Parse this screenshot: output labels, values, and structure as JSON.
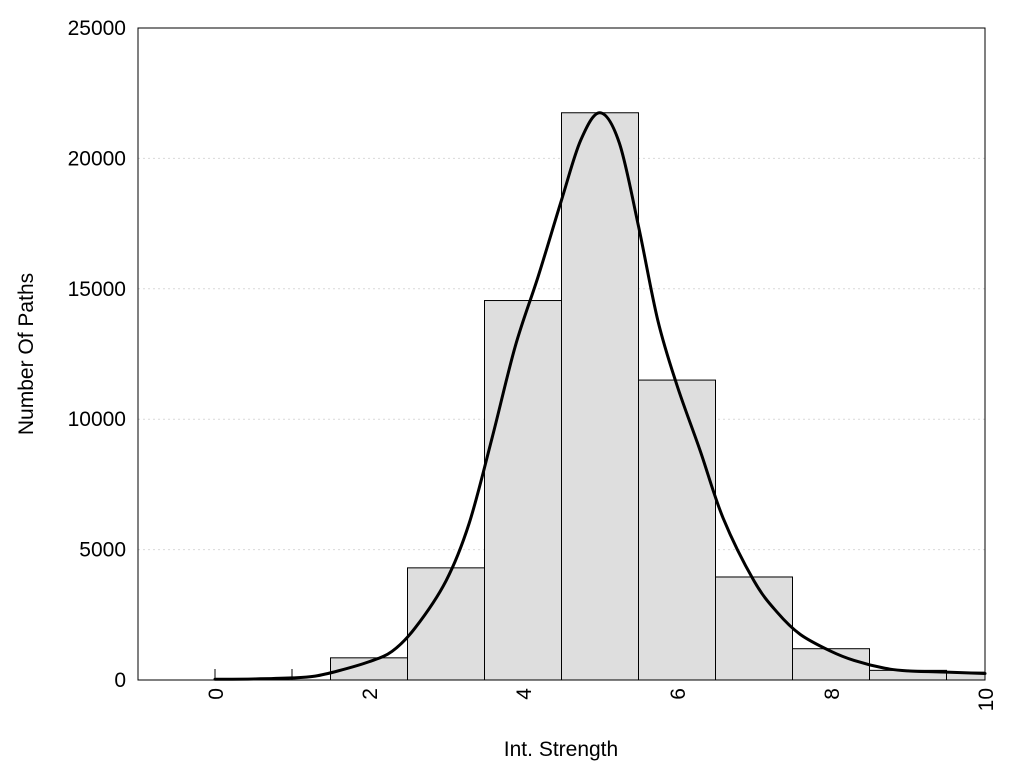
{
  "chart_data": {
    "type": "bar",
    "title": "",
    "xlabel": "Int. Strength",
    "ylabel": "Number Of Paths",
    "xlim": [
      -1,
      10
    ],
    "ylim": [
      0,
      25000
    ],
    "grid": true,
    "x_ticks": [
      0,
      2,
      4,
      6,
      8,
      10
    ],
    "x_tick_labels": [
      "0",
      "2",
      "4",
      "6",
      "8",
      "10"
    ],
    "y_ticks": [
      0,
      5000,
      10000,
      15000,
      20000,
      25000
    ],
    "y_tick_labels": [
      "0",
      "5000",
      "10000",
      "15000",
      "20000",
      "25000"
    ],
    "bin_width": 1,
    "bars": [
      {
        "x": 0,
        "value": 0
      },
      {
        "x": 1,
        "value": 0
      },
      {
        "x": 2,
        "value": 850
      },
      {
        "x": 3,
        "value": 4300
      },
      {
        "x": 4,
        "value": 14550
      },
      {
        "x": 5,
        "value": 21750
      },
      {
        "x": 6,
        "value": 11500
      },
      {
        "x": 7,
        "value": 3950
      },
      {
        "x": 8,
        "value": 1200
      },
      {
        "x": 9,
        "value": 370
      },
      {
        "x": 10,
        "value": 300
      }
    ],
    "curve": [
      [
        0,
        30
      ],
      [
        0.5,
        40
      ],
      [
        1,
        80
      ],
      [
        1.3,
        150
      ],
      [
        1.6,
        350
      ],
      [
        2,
        700
      ],
      [
        2.3,
        1100
      ],
      [
        2.6,
        2000
      ],
      [
        3,
        3800
      ],
      [
        3.3,
        6000
      ],
      [
        3.6,
        9300
      ],
      [
        3.9,
        12800
      ],
      [
        4.2,
        15500
      ],
      [
        4.5,
        18400
      ],
      [
        4.75,
        20700
      ],
      [
        5,
        21750
      ],
      [
        5.25,
        20600
      ],
      [
        5.5,
        17400
      ],
      [
        5.75,
        13800
      ],
      [
        6,
        11300
      ],
      [
        6.3,
        8800
      ],
      [
        6.6,
        6200
      ],
      [
        7,
        3800
      ],
      [
        7.3,
        2600
      ],
      [
        7.6,
        1750
      ],
      [
        8,
        1100
      ],
      [
        8.3,
        750
      ],
      [
        8.7,
        450
      ],
      [
        9,
        350
      ],
      [
        9.5,
        300
      ],
      [
        10,
        250
      ]
    ]
  }
}
